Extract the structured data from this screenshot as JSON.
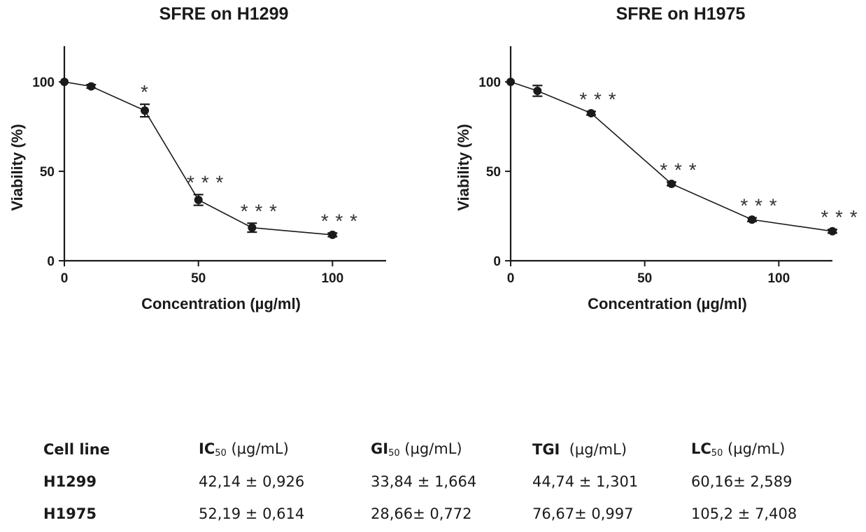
{
  "chart_data": [
    {
      "type": "line",
      "title": "SFRE on H1299",
      "xlabel": "Concentration (µg/ml)",
      "ylabel": "Viability (%)",
      "xlim": [
        0,
        120
      ],
      "ylim": [
        0,
        120
      ],
      "xticks": [
        0,
        50,
        100
      ],
      "yticks": [
        0,
        50,
        100
      ],
      "grid": false,
      "points": [
        {
          "x": 0,
          "y": 100,
          "err": 0,
          "sig": ""
        },
        {
          "x": 10,
          "y": 97.5,
          "err": 1,
          "sig": ""
        },
        {
          "x": 30,
          "y": 84,
          "err": 3.5,
          "sig": "*"
        },
        {
          "x": 50,
          "y": 34,
          "err": 3,
          "sig": "* * *"
        },
        {
          "x": 70,
          "y": 18.5,
          "err": 2.5,
          "sig": "* * *"
        },
        {
          "x": 100,
          "y": 14.5,
          "err": 1,
          "sig": "* * *"
        }
      ]
    },
    {
      "type": "line",
      "title": "SFRE on  H1975",
      "xlabel": "Concentration (µg/ml)",
      "ylabel": "Viability (%)",
      "xlim": [
        0,
        120
      ],
      "ylim": [
        0,
        120
      ],
      "xticks": [
        0,
        50,
        100
      ],
      "yticks": [
        0,
        50,
        100
      ],
      "grid": false,
      "points": [
        {
          "x": 0,
          "y": 100,
          "err": 0,
          "sig": ""
        },
        {
          "x": 10,
          "y": 95,
          "err": 3,
          "sig": ""
        },
        {
          "x": 30,
          "y": 82.5,
          "err": 1,
          "sig": "* * *"
        },
        {
          "x": 60,
          "y": 43,
          "err": 1,
          "sig": "* * *"
        },
        {
          "x": 90,
          "y": 23,
          "err": 1,
          "sig": "* * *"
        },
        {
          "x": 120,
          "y": 16.5,
          "err": 1,
          "sig": "* * *"
        }
      ]
    }
  ],
  "table": {
    "headers": [
      {
        "name": "Cell line",
        "sub": "",
        "unit": ""
      },
      {
        "name": "IC",
        "sub": "50",
        "unit": " (µg/mL)"
      },
      {
        "name": "GI",
        "sub": "50",
        "unit": " (µg/mL)"
      },
      {
        "name": "TGI",
        "sub": "",
        "unit": "  (µg/mL)"
      },
      {
        "name": "LC",
        "sub": "50",
        "unit": " (µg/mL)"
      }
    ],
    "rows": [
      [
        "H1299",
        "42,14 ± 0,926",
        "33,84 ± 1,664",
        "44,74 ± 1,301",
        "60,16± 2,589"
      ],
      [
        "H1975",
        "52,19 ± 0,614",
        "28,66± 0,772",
        "76,67± 0,997",
        "105,2 ± 7,408"
      ]
    ]
  }
}
